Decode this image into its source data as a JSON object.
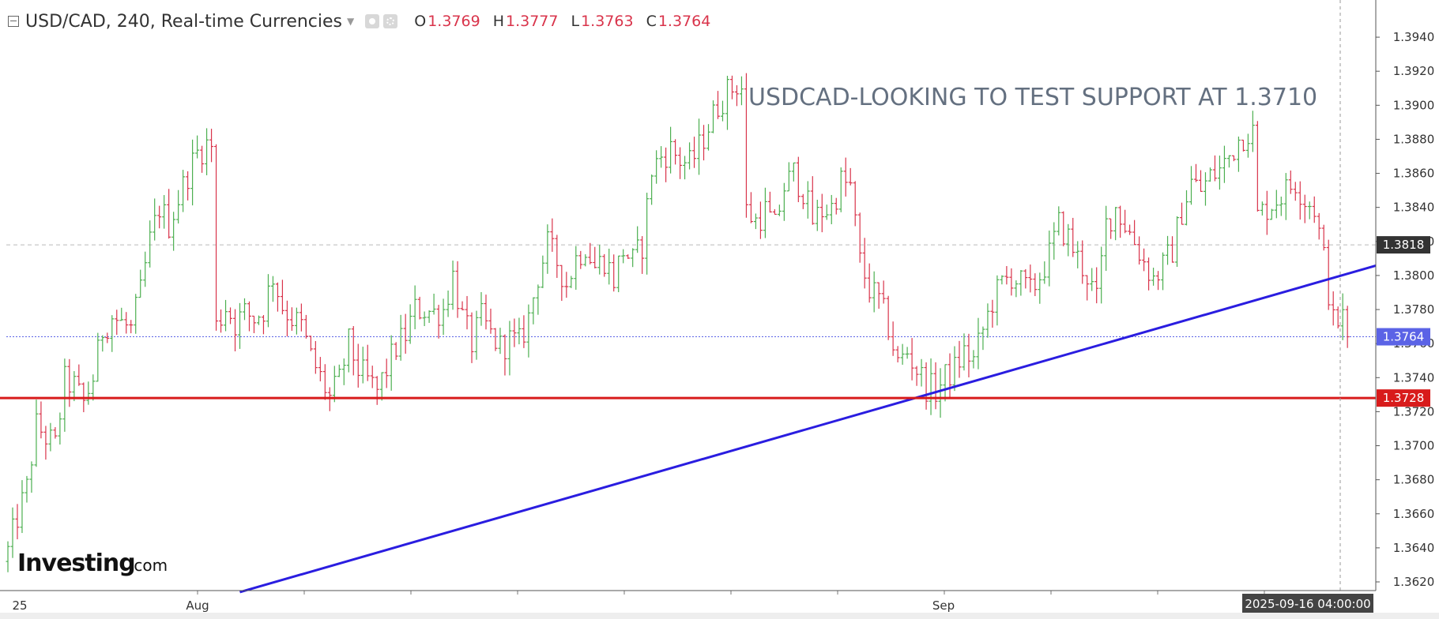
{
  "header": {
    "symbol": "USD/CAD, 240, Real-time Currencies",
    "ohlc": [
      {
        "key": "O",
        "value": "1.3769"
      },
      {
        "key": "H",
        "value": "1.3777"
      },
      {
        "key": "L",
        "value": "1.3763"
      },
      {
        "key": "C",
        "value": "1.3764"
      }
    ]
  },
  "colors": {
    "up": "#4caf50",
    "down": "#d9344b",
    "trendline": "#2a1de0",
    "support": "#d81b1b",
    "current_price": "#5b63e6",
    "prev_close": "#333333"
  },
  "chart_data": {
    "type": "ohlc",
    "title": "USDCAD-LOOKING TO TEST SUPPORT AT 1.3710",
    "ylim": [
      1.361,
      1.398
    ],
    "y_ticks": [
      "1.3620",
      "1.3640",
      "1.3660",
      "1.3680",
      "1.3700",
      "1.3720",
      "1.3740",
      "1.3760",
      "1.3780",
      "1.3800",
      "1.3820",
      "1.3840",
      "1.3860",
      "1.3880",
      "1.3900",
      "1.3920",
      "1.3940"
    ],
    "x_labels": [
      "25",
      "Aug",
      "Sep"
    ],
    "price_labels": [
      {
        "text": "1.3818",
        "value": 1.3818,
        "color": "#333333",
        "line": "dashed-gray"
      },
      {
        "text": "1.3764",
        "value": 1.3764,
        "color": "#5b63e6",
        "line": "dotted-blue"
      },
      {
        "text": "1.3728",
        "value": 1.3728,
        "color": "#d81b1b",
        "line": "solid-red"
      }
    ],
    "crosshair_time": "2025-09-16 04:00:00",
    "trendline": {
      "from": {
        "bar": 49,
        "price": 1.3614
      },
      "to": {
        "bar": 278,
        "price": 1.3797
      }
    },
    "support_level": 1.3728,
    "path_points": [
      [
        0,
        1.3638
      ],
      [
        2,
        1.3658
      ],
      [
        4,
        1.3675
      ],
      [
        6,
        1.3712
      ],
      [
        8,
        1.3705
      ],
      [
        10,
        1.37
      ],
      [
        12,
        1.3738
      ],
      [
        14,
        1.3735
      ],
      [
        16,
        1.3725
      ],
      [
        18,
        1.374
      ],
      [
        20,
        1.3768
      ],
      [
        22,
        1.3776
      ],
      [
        24,
        1.3772
      ],
      [
        26,
        1.3768
      ],
      [
        28,
        1.379
      ],
      [
        30,
        1.382
      ],
      [
        32,
        1.384
      ],
      [
        34,
        1.383
      ],
      [
        36,
        1.3845
      ],
      [
        38,
        1.386
      ],
      [
        40,
        1.3872
      ],
      [
        42,
        1.3877
      ],
      [
        43,
        1.3876
      ],
      [
        44,
        1.377
      ],
      [
        46,
        1.3782
      ],
      [
        48,
        1.3772
      ],
      [
        50,
        1.3778
      ],
      [
        52,
        1.3775
      ],
      [
        54,
        1.378
      ],
      [
        56,
        1.38
      ],
      [
        58,
        1.3782
      ],
      [
        60,
        1.3775
      ],
      [
        62,
        1.377
      ],
      [
        64,
        1.3752
      ],
      [
        66,
        1.374
      ],
      [
        68,
        1.3728
      ],
      [
        70,
        1.3738
      ],
      [
        72,
        1.376
      ],
      [
        74,
        1.3745
      ],
      [
        76,
        1.3738
      ],
      [
        78,
        1.3732
      ],
      [
        80,
        1.3745
      ],
      [
        82,
        1.3758
      ],
      [
        84,
        1.3765
      ],
      [
        86,
        1.378
      ],
      [
        88,
        1.378
      ],
      [
        90,
        1.3778
      ],
      [
        92,
        1.378
      ],
      [
        94,
        1.38
      ],
      [
        96,
        1.3775
      ],
      [
        98,
        1.376
      ],
      [
        100,
        1.3775
      ],
      [
        102,
        1.3765
      ],
      [
        104,
        1.3758
      ],
      [
        106,
        1.3762
      ],
      [
        108,
        1.376
      ],
      [
        110,
        1.3775
      ],
      [
        112,
        1.38
      ],
      [
        114,
        1.3818
      ],
      [
        116,
        1.3808
      ],
      [
        118,
        1.3795
      ],
      [
        120,
        1.381
      ],
      [
        122,
        1.3818
      ],
      [
        124,
        1.3805
      ],
      [
        126,
        1.381
      ],
      [
        128,
        1.3798
      ],
      [
        130,
        1.3815
      ],
      [
        132,
        1.3808
      ],
      [
        134,
        1.3818
      ],
      [
        136,
        1.3862
      ],
      [
        138,
        1.387
      ],
      [
        140,
        1.3874
      ],
      [
        142,
        1.3868
      ],
      [
        144,
        1.3865
      ],
      [
        146,
        1.3875
      ],
      [
        148,
        1.3888
      ],
      [
        150,
        1.39
      ],
      [
        152,
        1.3908
      ],
      [
        154,
        1.3912
      ],
      [
        155,
        1.391
      ],
      [
        156,
        1.3838
      ],
      [
        158,
        1.3832
      ],
      [
        160,
        1.3838
      ],
      [
        162,
        1.3828
      ],
      [
        164,
        1.3852
      ],
      [
        166,
        1.386
      ],
      [
        168,
        1.385
      ],
      [
        170,
        1.3832
      ],
      [
        172,
        1.3838
      ],
      [
        174,
        1.384
      ],
      [
        176,
        1.3855
      ],
      [
        178,
        1.3852
      ],
      [
        180,
        1.3808
      ],
      [
        182,
        1.3792
      ],
      [
        184,
        1.3785
      ],
      [
        186,
        1.377
      ],
      [
        188,
        1.3748
      ],
      [
        190,
        1.3755
      ],
      [
        192,
        1.3745
      ],
      [
        194,
        1.3735
      ],
      [
        196,
        1.3732
      ],
      [
        198,
        1.374
      ],
      [
        200,
        1.3745
      ],
      [
        202,
        1.3755
      ],
      [
        204,
        1.375
      ],
      [
        206,
        1.3768
      ],
      [
        208,
        1.3785
      ],
      [
        210,
        1.3795
      ],
      [
        212,
        1.38
      ],
      [
        214,
        1.3795
      ],
      [
        216,
        1.379
      ],
      [
        218,
        1.38
      ],
      [
        220,
        1.3812
      ],
      [
        222,
        1.383
      ],
      [
        224,
        1.3822
      ],
      [
        226,
        1.381
      ],
      [
        228,
        1.38
      ],
      [
        230,
        1.3785
      ],
      [
        232,
        1.383
      ],
      [
        234,
        1.384
      ],
      [
        236,
        1.383
      ],
      [
        238,
        1.382
      ],
      [
        240,
        1.3808
      ],
      [
        242,
        1.3798
      ],
      [
        244,
        1.3805
      ],
      [
        246,
        1.3815
      ],
      [
        248,
        1.3838
      ],
      [
        250,
        1.3855
      ],
      [
        252,
        1.385
      ],
      [
        254,
        1.3858
      ],
      [
        256,
        1.3862
      ],
      [
        258,
        1.387
      ],
      [
        260,
        1.388
      ],
      [
        262,
        1.3885
      ],
      [
        263,
        1.3884
      ],
      [
        264,
        1.3835
      ],
      [
        266,
        1.384
      ],
      [
        268,
        1.3845
      ],
      [
        270,
        1.385
      ],
      [
        272,
        1.3855
      ],
      [
        274,
        1.3845
      ],
      [
        276,
        1.384
      ],
      [
        278,
        1.381
      ],
      [
        280,
        1.3772
      ],
      [
        282,
        1.3775
      ],
      [
        283,
        1.3764
      ]
    ]
  }
}
